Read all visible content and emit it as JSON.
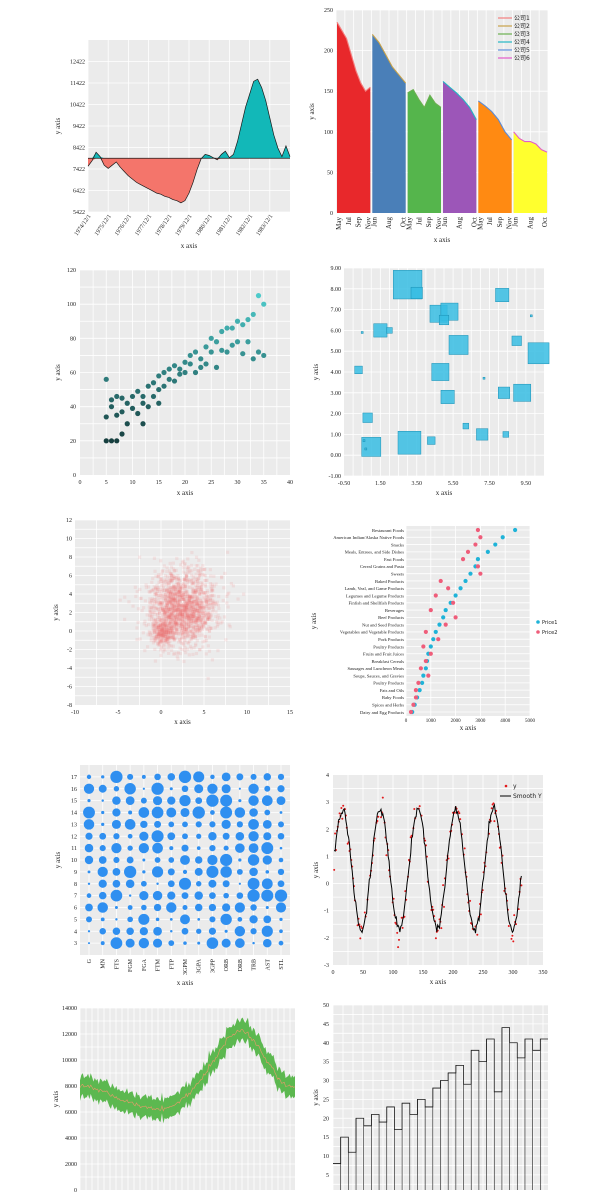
{
  "chart_data": [
    {
      "id": "c1",
      "type": "area",
      "xlabel": "x axis",
      "ylabel": "y axis",
      "baseline": 7922,
      "ylim": [
        5422,
        13422
      ],
      "yticks": [
        5422,
        6422,
        7422,
        8422,
        9422,
        10422,
        11422,
        12422
      ],
      "x_tick_labels": [
        "1974/12/1",
        "1975/12/1",
        "1976/12/1",
        "1977/12/1",
        "1978/12/1",
        "1979/12/1",
        "1980/12/1",
        "1981/12/1",
        "1982/12/1",
        "1983/12/1"
      ],
      "x": [
        1974.0,
        1974.2,
        1974.4,
        1974.6,
        1974.8,
        1975.0,
        1975.2,
        1975.4,
        1975.6,
        1975.8,
        1976.0,
        1976.2,
        1976.4,
        1976.6,
        1976.8,
        1977.0,
        1977.2,
        1977.4,
        1977.6,
        1977.8,
        1978.0,
        1978.2,
        1978.4,
        1978.6,
        1978.8,
        1979.0,
        1979.2,
        1979.4,
        1979.6,
        1979.8,
        1980.0,
        1980.2,
        1980.4,
        1980.6,
        1980.8,
        1981.0,
        1981.2,
        1981.4,
        1981.6,
        1981.8,
        1982.0,
        1982.2,
        1982.4,
        1982.6,
        1982.8,
        1983.0,
        1983.2,
        1983.4,
        1983.6,
        1983.8,
        1984.0
      ],
      "values": [
        7550,
        7800,
        8200,
        8000,
        7600,
        7450,
        7600,
        7750,
        7500,
        7300,
        7100,
        6950,
        6800,
        6700,
        6600,
        6500,
        6400,
        6300,
        6250,
        6150,
        6100,
        6000,
        5950,
        5850,
        5950,
        6300,
        6800,
        7400,
        7900,
        8100,
        8050,
        7950,
        7850,
        8100,
        8250,
        7950,
        8100,
        8700,
        9500,
        10300,
        10900,
        11500,
        11600,
        11200,
        10600,
        9800,
        9000,
        8400,
        8000,
        8500,
        8000
      ]
    },
    {
      "id": "c2",
      "type": "area",
      "xlabel": "x axis",
      "ylabel": "y axis",
      "ylim": [
        0,
        250
      ],
      "yticks": [
        0,
        50,
        100,
        150,
        200,
        250
      ],
      "month_labels": [
        "May",
        "Jul",
        "Sep",
        "Nov"
      ],
      "month_labels_b": [
        "Jun",
        "Aug",
        "Oct"
      ],
      "series": [
        {
          "name": "公司1",
          "color": "#e8282b",
          "values": [
            235,
            225,
            215,
            195,
            175,
            160,
            150,
            155
          ]
        },
        {
          "name": "公司2",
          "color": "#4a7fb8",
          "values": [
            220,
            210,
            195,
            180,
            170,
            160
          ]
        },
        {
          "name": "公司3",
          "color": "#55b54c",
          "values": [
            148,
            152,
            140,
            130,
            145,
            135,
            130
          ]
        },
        {
          "name": "公司4",
          "color": "#9c56b8",
          "values": [
            162,
            155,
            148,
            140,
            130,
            115
          ]
        },
        {
          "name": "公司5",
          "color": "#ff8a12",
          "values": [
            138,
            132,
            125,
            115,
            100,
            90
          ]
        },
        {
          "name": "公司6",
          "color": "#ffff2e",
          "values": [
            100,
            92,
            88,
            88,
            85,
            78,
            75
          ]
        }
      ],
      "line_colors": [
        "#f47e7e",
        "#c8a24a",
        "#6ab04f",
        "#23b6c4",
        "#5b8bd8",
        "#e35bc9"
      ]
    },
    {
      "id": "c3",
      "type": "scatter",
      "xlabel": "x axis",
      "ylabel": "y axis",
      "xlim": [
        0,
        40
      ],
      "ylim": [
        0,
        120
      ],
      "xticks": [
        0,
        5,
        10,
        15,
        20,
        25,
        30,
        35,
        40
      ],
      "yticks": [
        0,
        20,
        40,
        60,
        80,
        100,
        120
      ],
      "points": [
        [
          5,
          56
        ],
        [
          5,
          34
        ],
        [
          5,
          20
        ],
        [
          6,
          40
        ],
        [
          6,
          20
        ],
        [
          6,
          44
        ],
        [
          7,
          20
        ],
        [
          7,
          35
        ],
        [
          7,
          46
        ],
        [
          8,
          37
        ],
        [
          8,
          45
        ],
        [
          8,
          24
        ],
        [
          9,
          42
        ],
        [
          9,
          30
        ],
        [
          10,
          46
        ],
        [
          10,
          39
        ],
        [
          11,
          49
        ],
        [
          11,
          36
        ],
        [
          12,
          46
        ],
        [
          12,
          42
        ],
        [
          12,
          30
        ],
        [
          13,
          52
        ],
        [
          13,
          40
        ],
        [
          14,
          54
        ],
        [
          14,
          46
        ],
        [
          15,
          58
        ],
        [
          15,
          50
        ],
        [
          15,
          42
        ],
        [
          16,
          60
        ],
        [
          16,
          52
        ],
        [
          17,
          62
        ],
        [
          17,
          56
        ],
        [
          18,
          64
        ],
        [
          18,
          55
        ],
        [
          19,
          62
        ],
        [
          19,
          59
        ],
        [
          20,
          60
        ],
        [
          20,
          66
        ],
        [
          21,
          65
        ],
        [
          21,
          70
        ],
        [
          22,
          72
        ],
        [
          22,
          60
        ],
        [
          23,
          68
        ],
        [
          23,
          63
        ],
        [
          24,
          75
        ],
        [
          24,
          65
        ],
        [
          25,
          72
        ],
        [
          25,
          80
        ],
        [
          26,
          78
        ],
        [
          26,
          63
        ],
        [
          27,
          84
        ],
        [
          27,
          73
        ],
        [
          28,
          72
        ],
        [
          28,
          86
        ],
        [
          29,
          86
        ],
        [
          29,
          76
        ],
        [
          30,
          90
        ],
        [
          30,
          78
        ],
        [
          31,
          88
        ],
        [
          31,
          71
        ],
        [
          32,
          91
        ],
        [
          32,
          78
        ],
        [
          33,
          94
        ],
        [
          33,
          68
        ],
        [
          34,
          105
        ],
        [
          34,
          72
        ],
        [
          35,
          100
        ],
        [
          35,
          70
        ]
      ]
    },
    {
      "id": "c4",
      "type": "scatter",
      "xlabel": "x axis",
      "ylabel": "y axis",
      "xlim": [
        -0.5,
        10.5
      ],
      "ylim": [
        -1,
        9
      ],
      "xticks": [
        -0.5,
        1.5,
        3.5,
        5.5,
        7.5,
        9.5
      ],
      "xtick_labels": [
        "-0.50",
        "1.50",
        "3.50",
        "5.50",
        "7.50",
        "9.50"
      ],
      "yticks": [
        -1,
        0,
        1,
        2,
        3,
        4,
        5,
        6,
        7,
        8,
        9
      ],
      "ytick_labels": [
        "-1.00",
        "0.00",
        "1.00",
        "2.00",
        "3.00",
        "4.00",
        "5.00",
        "6.00",
        "7.00",
        "8.00",
        "9.00"
      ],
      "points": [
        [
          3.0,
          8.2,
          0.75
        ],
        [
          3.5,
          7.8,
          0.3
        ],
        [
          1.5,
          6.0,
          0.35
        ],
        [
          2.0,
          6.0,
          0.15
        ],
        [
          4.7,
          6.8,
          0.45
        ],
        [
          5.3,
          6.9,
          0.45
        ],
        [
          5.0,
          6.5,
          0.25
        ],
        [
          8.2,
          7.7,
          0.35
        ],
        [
          9.8,
          6.7,
          0.05
        ],
        [
          0.5,
          5.9,
          0.05
        ],
        [
          5.8,
          5.3,
          0.5
        ],
        [
          9.0,
          5.5,
          0.25
        ],
        [
          10.2,
          4.9,
          0.55
        ],
        [
          4.8,
          4.0,
          0.45
        ],
        [
          0.3,
          4.1,
          0.2
        ],
        [
          7.2,
          3.7,
          0.05
        ],
        [
          5.2,
          2.8,
          0.35
        ],
        [
          8.3,
          3.0,
          0.3
        ],
        [
          9.3,
          3.0,
          0.45
        ],
        [
          0.8,
          1.8,
          0.25
        ],
        [
          1.0,
          0.4,
          0.5
        ],
        [
          3.1,
          0.6,
          0.6
        ],
        [
          4.3,
          0.7,
          0.2
        ],
        [
          6.2,
          1.4,
          0.15
        ],
        [
          7.1,
          1.0,
          0.3
        ],
        [
          8.4,
          1.0,
          0.15
        ],
        [
          0.6,
          0.7,
          0.05
        ],
        [
          0.7,
          0.3,
          0.05
        ]
      ]
    },
    {
      "id": "c5",
      "type": "scatter",
      "xlabel": "x axis",
      "ylabel": "y axis",
      "xlim": [
        -10,
        15
      ],
      "ylim": [
        -8,
        12
      ],
      "xticks": [
        -10,
        -5,
        0,
        5,
        10,
        15
      ],
      "yticks": [
        -8,
        -6,
        -4,
        -2,
        0,
        2,
        4,
        6,
        8,
        10,
        12
      ],
      "cloud_center": [
        2.5,
        2.5
      ],
      "cloud_sd": [
        2.0,
        2.0
      ],
      "cloud_n": 1800
    },
    {
      "id": "c6",
      "type": "scatter",
      "xlabel": "x axis",
      "ylabel": "y axis",
      "xlim": [
        0,
        5000
      ],
      "xticks": [
        0,
        1000,
        2000,
        3000,
        4000,
        5000
      ],
      "categories": [
        "Restaurant Foods",
        "American Indian/Alaska Native Foods",
        "Snacks",
        "Meals, Entrees, and Side Dishes",
        "Fast Foods",
        "Cereal Grains and Pasta",
        "Sweets",
        "Baked Products",
        "Lamb, Veal, and Game Products",
        "Legumes and Legume Products",
        "Finfish and Shellfish Products",
        "Beverages",
        "Beef Products",
        "Nut and Seed Products",
        "Vegetables and Vegetable Products",
        "Pork Products",
        "Poultry Products",
        "Fruits and Fruit Juices",
        "Breakfast Cereals",
        "Sausages and Luncheon Meats",
        "Soups, Sauces, and Gravies",
        "Poultry Products",
        "Fats and Oils",
        "Baby Foods",
        "Spices and Herbs",
        "Dairy and Egg Products"
      ],
      "series": [
        {
          "name": "Price1",
          "color": "#1fb3d8",
          "values": [
            4400,
            3900,
            3600,
            3300,
            2900,
            2800,
            2600,
            2400,
            2200,
            2000,
            1800,
            1600,
            1500,
            1350,
            1200,
            1100,
            1000,
            900,
            850,
            800,
            700,
            650,
            550,
            450,
            350,
            250
          ]
        },
        {
          "name": "Price2",
          "color": "#ef5d7a",
          "values": [
            2900,
            3000,
            2800,
            2500,
            2300,
            2900,
            3000,
            1400,
            1700,
            1200,
            1900,
            1000,
            2000,
            1600,
            800,
            1300,
            700,
            1000,
            800,
            600,
            900,
            500,
            400,
            400,
            300,
            200
          ]
        }
      ]
    },
    {
      "id": "c7",
      "type": "scatter",
      "xlabel": "x axis",
      "ylabel": "y axis",
      "ylim": [
        2,
        18
      ],
      "yticks": [
        3,
        4,
        5,
        6,
        7,
        8,
        9,
        10,
        11,
        12,
        13,
        14,
        15,
        16,
        17
      ],
      "categories": [
        "G",
        "MN",
        "FTS",
        "FGM",
        "FGA",
        "FTM",
        "FTP",
        "3GPM",
        "3GPA",
        "3GPP",
        "ORB",
        "DRB",
        "TRB",
        "AST",
        "STL"
      ]
    },
    {
      "id": "c8",
      "type": "line",
      "xlabel": "x axis",
      "ylabel": "y axis",
      "xlim": [
        0,
        350
      ],
      "ylim": [
        -3,
        4
      ],
      "xticks": [
        0,
        50,
        100,
        150,
        200,
        250,
        300,
        350
      ],
      "yticks": [
        -3,
        -2,
        -1,
        0,
        1,
        2,
        3,
        4
      ],
      "series": [
        {
          "name": "y",
          "color": "#e31a1c",
          "marker": "dot"
        },
        {
          "name": "Smooth Y",
          "color": "#000000",
          "marker": "line"
        }
      ],
      "period": 63,
      "amplitude": 2.2,
      "offset": 0.5,
      "x_range": [
        2,
        315
      ]
    },
    {
      "id": "c9",
      "type": "area",
      "xlabel": "",
      "ylabel": "y axis",
      "ylim": [
        0,
        14000
      ],
      "yticks": [
        0,
        2000,
        4000,
        6000,
        8000,
        10000,
        12000,
        14000
      ],
      "center": [
        8100,
        7900,
        7500,
        7000,
        6700,
        6300,
        6200,
        6500,
        7300,
        8500,
        10000,
        11800,
        12300,
        11400,
        9800,
        8200,
        7900
      ],
      "band": 800,
      "color": "#5cb850"
    },
    {
      "id": "c10",
      "type": "line",
      "xlabel": "",
      "ylabel": "y axis",
      "ylim": [
        0,
        50
      ],
      "yticks": [
        5,
        10,
        15,
        20,
        25,
        30,
        35,
        40,
        45,
        50
      ],
      "values": [
        8,
        15,
        11,
        20,
        18,
        21,
        19,
        23,
        17,
        24,
        21,
        25,
        23,
        28,
        30,
        32,
        34,
        29,
        38,
        35,
        41,
        27,
        44,
        40,
        36,
        41,
        38,
        41
      ],
      "step": 1
    }
  ]
}
